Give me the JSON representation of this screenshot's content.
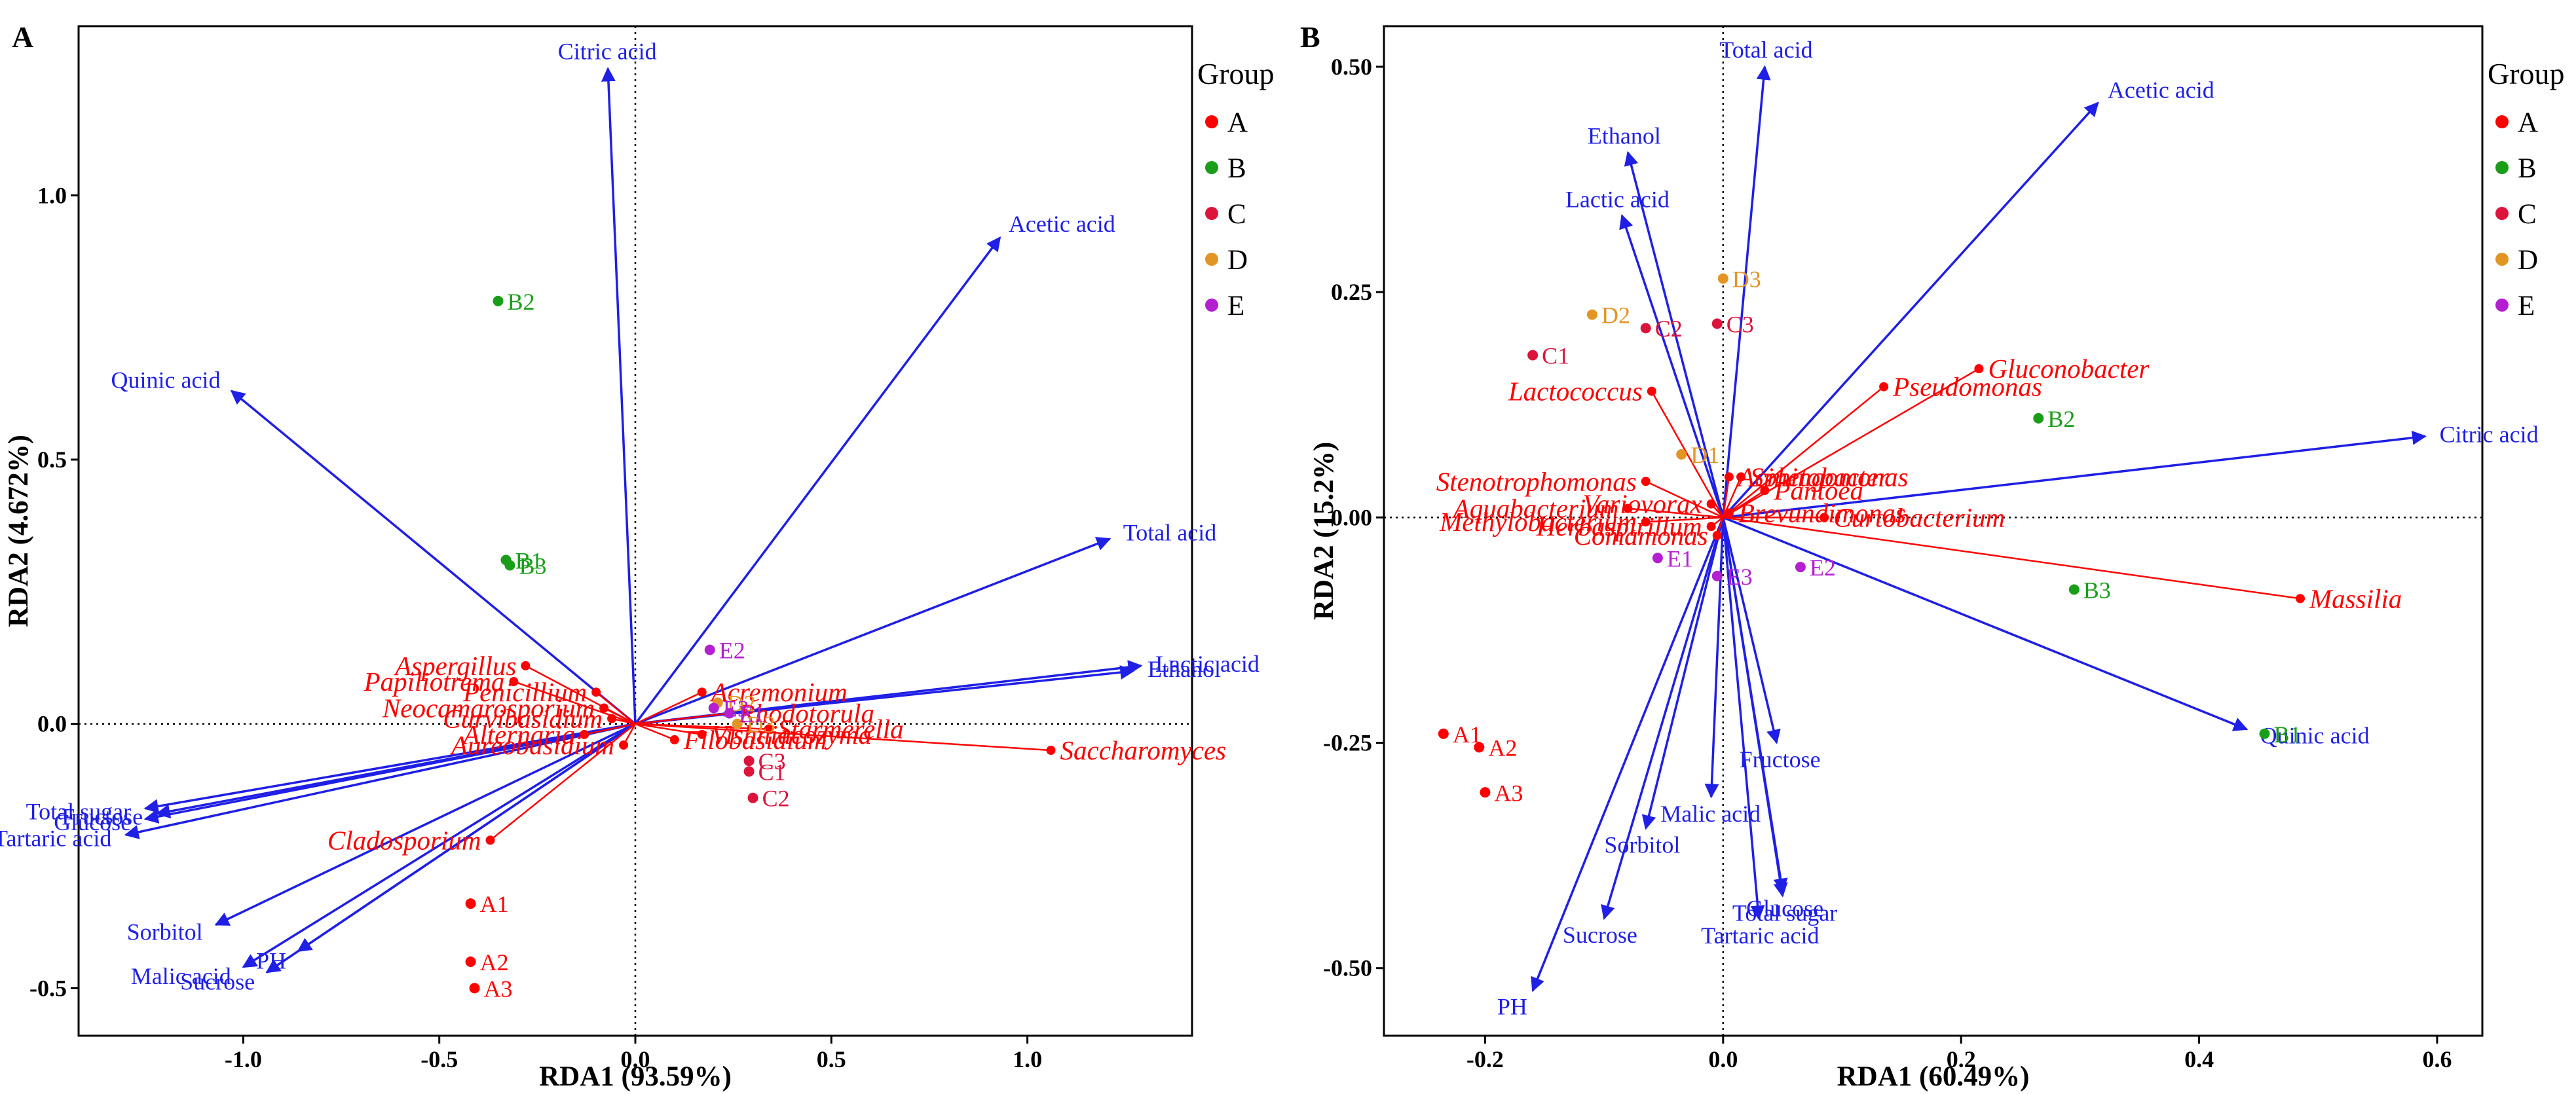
{
  "figure": {
    "legend_title": "Group",
    "group_colors": {
      "A": "#ff0000",
      "B": "#1a9e1a",
      "C": "#dc143c",
      "D": "#e39524",
      "E": "#b31fd1"
    },
    "arrow_color": "#1f1fe6",
    "taxon_color": "#ff0000"
  },
  "chart_data": [
    {
      "type": "scatter",
      "panel_label": "A",
      "title": "",
      "xlabel": "RDA1 (93.59%)",
      "ylabel": "RDA2 (4.672%)",
      "xlim": [
        -1.42,
        1.42
      ],
      "ylim": [
        -0.59,
        1.32
      ],
      "xticks": [
        -1.0,
        -0.5,
        0.0,
        0.5,
        1.0
      ],
      "xtick_labels": [
        "-1.0",
        "-0.5",
        "0.0",
        "0.5",
        "1.0"
      ],
      "yticks": [
        -0.5,
        0.0,
        0.5,
        1.0
      ],
      "ytick_labels": [
        "-0.5",
        "0.0",
        "0.5",
        "1.0"
      ],
      "zero_lines": "dotted",
      "grid": false,
      "legend": {
        "title": "Group",
        "position": "right",
        "entries": [
          "A",
          "B",
          "C",
          "D",
          "E"
        ]
      },
      "samples": [
        {
          "label": "A1",
          "group": "A",
          "x": -0.42,
          "y": -0.34
        },
        {
          "label": "A2",
          "group": "A",
          "x": -0.42,
          "y": -0.45
        },
        {
          "label": "A3",
          "group": "A",
          "x": -0.41,
          "y": -0.5
        },
        {
          "label": "B1",
          "group": "B",
          "x": -0.33,
          "y": 0.31
        },
        {
          "label": "B2",
          "group": "B",
          "x": -0.35,
          "y": 0.8
        },
        {
          "label": "B3",
          "group": "B",
          "x": -0.32,
          "y": 0.3
        },
        {
          "label": "C1",
          "group": "C",
          "x": 0.29,
          "y": -0.09
        },
        {
          "label": "C2",
          "group": "C",
          "x": 0.3,
          "y": -0.14
        },
        {
          "label": "C3",
          "group": "C",
          "x": 0.29,
          "y": -0.07
        },
        {
          "label": "D2",
          "group": "D",
          "x": 0.21,
          "y": 0.04
        },
        {
          "label": "D3",
          "group": "D",
          "x": 0.26,
          "y": 0.0
        },
        {
          "label": "E1",
          "group": "E",
          "x": 0.24,
          "y": 0.02
        },
        {
          "label": "E2",
          "group": "E",
          "x": 0.19,
          "y": 0.14
        },
        {
          "label": "E3",
          "group": "E",
          "x": 0.2,
          "y": 0.03
        }
      ],
      "arrows": [
        {
          "label": "Citric acid",
          "x": -0.07,
          "y": 1.24
        },
        {
          "label": "Acetic acid",
          "x": 0.93,
          "y": 0.92
        },
        {
          "label": "Quinic acid",
          "x": -1.03,
          "y": 0.63
        },
        {
          "label": "Total acid",
          "x": 1.21,
          "y": 0.35
        },
        {
          "label": "Lactic acid",
          "x": 1.29,
          "y": 0.11
        },
        {
          "label": "Ethanol",
          "x": 1.27,
          "y": 0.1
        },
        {
          "label": "Total sugar",
          "x": -1.25,
          "y": -0.16
        },
        {
          "label": "Glucose",
          "x": -1.25,
          "y": -0.18
        },
        {
          "label": "Fructose",
          "x": -1.22,
          "y": -0.17
        },
        {
          "label": "Tartaric acid",
          "x": -1.3,
          "y": -0.21
        },
        {
          "label": "Sorbitol",
          "x": -1.07,
          "y": -0.38
        },
        {
          "label": "Malic acid",
          "x": -1.0,
          "y": -0.46
        },
        {
          "label": "Sucrose",
          "x": -0.94,
          "y": -0.47
        },
        {
          "label": "PH",
          "x": -0.86,
          "y": -0.43
        }
      ],
      "taxa": [
        {
          "label": "Aspergillus",
          "x": -0.28,
          "y": 0.11
        },
        {
          "label": "Papiliotrema",
          "x": -0.31,
          "y": 0.08
        },
        {
          "label": "Penicillium",
          "x": -0.1,
          "y": 0.06
        },
        {
          "label": "Acremonium",
          "x": 0.17,
          "y": 0.06
        },
        {
          "label": "Neocamarosporium",
          "x": -0.08,
          "y": 0.03
        },
        {
          "label": "Rhodotorula",
          "x": 0.24,
          "y": 0.02
        },
        {
          "label": "Curvibasidium",
          "x": -0.06,
          "y": 0.01
        },
        {
          "label": "Starmerella",
          "x": 0.34,
          "y": -0.01
        },
        {
          "label": "Saccharomyces",
          "x": 1.06,
          "y": -0.05
        },
        {
          "label": "Vishniacozyma",
          "x": 0.17,
          "y": -0.02
        },
        {
          "label": "Alternaria",
          "x": -0.13,
          "y": -0.02
        },
        {
          "label": "Filobasidium",
          "x": 0.1,
          "y": -0.03
        },
        {
          "label": "Aureobasidium",
          "x": -0.03,
          "y": -0.04
        },
        {
          "label": "Cladosporium",
          "x": -0.37,
          "y": -0.22
        }
      ]
    },
    {
      "type": "scatter",
      "panel_label": "B",
      "title": "",
      "xlabel": "RDA1 (60.49%)",
      "ylabel": "RDA2 (15.2%)",
      "xlim": [
        -0.285,
        0.638
      ],
      "ylim": [
        -0.575,
        0.545
      ],
      "xticks": [
        -0.2,
        0.0,
        0.2,
        0.4,
        0.6
      ],
      "xtick_labels": [
        "-0.2",
        "0.0",
        "0.2",
        "0.4",
        "0.6"
      ],
      "yticks": [
        -0.5,
        -0.25,
        0.0,
        0.25,
        0.5
      ],
      "ytick_labels": [
        "-0.50",
        "-0.25",
        "0.00",
        "0.25",
        "0.50"
      ],
      "zero_lines": "dotted",
      "grid": false,
      "legend": {
        "title": "Group",
        "position": "right",
        "entries": [
          "A",
          "B",
          "C",
          "D",
          "E"
        ]
      },
      "samples": [
        {
          "label": "A1",
          "group": "A",
          "x": -0.235,
          "y": -0.24
        },
        {
          "label": "A2",
          "group": "A",
          "x": -0.205,
          "y": -0.255
        },
        {
          "label": "A3",
          "group": "A",
          "x": -0.2,
          "y": -0.305
        },
        {
          "label": "B1",
          "group": "B",
          "x": 0.455,
          "y": -0.24
        },
        {
          "label": "B2",
          "group": "B",
          "x": 0.265,
          "y": 0.11
        },
        {
          "label": "B3",
          "group": "B",
          "x": 0.295,
          "y": -0.08
        },
        {
          "label": "C1",
          "group": "C",
          "x": -0.16,
          "y": 0.18
        },
        {
          "label": "C2",
          "group": "C",
          "x": -0.065,
          "y": 0.21
        },
        {
          "label": "C3",
          "group": "C",
          "x": -0.005,
          "y": 0.215
        },
        {
          "label": "D1",
          "group": "D",
          "x": -0.035,
          "y": 0.07
        },
        {
          "label": "D2",
          "group": "D",
          "x": -0.11,
          "y": 0.225
        },
        {
          "label": "D3",
          "group": "D",
          "x": 0.0,
          "y": 0.265
        },
        {
          "label": "E1",
          "group": "E",
          "x": -0.055,
          "y": -0.045
        },
        {
          "label": "E2",
          "group": "E",
          "x": 0.065,
          "y": -0.055
        },
        {
          "label": "E3",
          "group": "E",
          "x": -0.005,
          "y": -0.065
        }
      ],
      "arrows": [
        {
          "label": "Total acid",
          "x": 0.035,
          "y": 0.5
        },
        {
          "label": "Acetic acid",
          "x": 0.315,
          "y": 0.46
        },
        {
          "label": "Ethanol",
          "x": -0.08,
          "y": 0.405
        },
        {
          "label": "Lactic acid",
          "x": -0.085,
          "y": 0.335
        },
        {
          "label": "Citric acid",
          "x": 0.59,
          "y": 0.09
        },
        {
          "label": "Quinic acid",
          "x": 0.44,
          "y": -0.235
        },
        {
          "label": "Fructose",
          "x": 0.045,
          "y": -0.25
        },
        {
          "label": "Malic acid",
          "x": -0.01,
          "y": -0.31
        },
        {
          "label": "Sorbitol",
          "x": -0.065,
          "y": -0.345
        },
        {
          "label": "Glucose",
          "x": 0.05,
          "y": -0.415
        },
        {
          "label": "Total sugar",
          "x": 0.05,
          "y": -0.42
        },
        {
          "label": "Sucrose",
          "x": -0.1,
          "y": -0.445
        },
        {
          "label": "Tartaric acid",
          "x": 0.03,
          "y": -0.445
        },
        {
          "label": "PH",
          "x": -0.16,
          "y": -0.525
        }
      ],
      "taxa": [
        {
          "label": "Gluconobacter",
          "x": 0.215,
          "y": 0.165
        },
        {
          "label": "Pseudomonas",
          "x": 0.135,
          "y": 0.145
        },
        {
          "label": "Lactococcus",
          "x": -0.06,
          "y": 0.14
        },
        {
          "label": "Acinetobacter",
          "x": 0.005,
          "y": 0.045
        },
        {
          "label": "Stenotrophomonas",
          "x": -0.065,
          "y": 0.04
        },
        {
          "label": "Sphingomonas",
          "x": 0.015,
          "y": 0.045
        },
        {
          "label": "Pantoea",
          "x": 0.035,
          "y": 0.03
        },
        {
          "label": "Variovorax",
          "x": -0.01,
          "y": 0.015
        },
        {
          "label": "Aquabacterium",
          "x": -0.08,
          "y": 0.01
        },
        {
          "label": "Brevundimonas",
          "x": 0.005,
          "y": 0.005
        },
        {
          "label": "Curtobacterium",
          "x": 0.085,
          "y": 0.0
        },
        {
          "label": "Methylobacterium",
          "x": -0.065,
          "y": -0.005
        },
        {
          "label": "Comamonas",
          "x": -0.005,
          "y": -0.02
        },
        {
          "label": "Herbaspirillum",
          "x": -0.01,
          "y": -0.01
        },
        {
          "label": "Massilia",
          "x": 0.485,
          "y": -0.09
        }
      ]
    }
  ]
}
